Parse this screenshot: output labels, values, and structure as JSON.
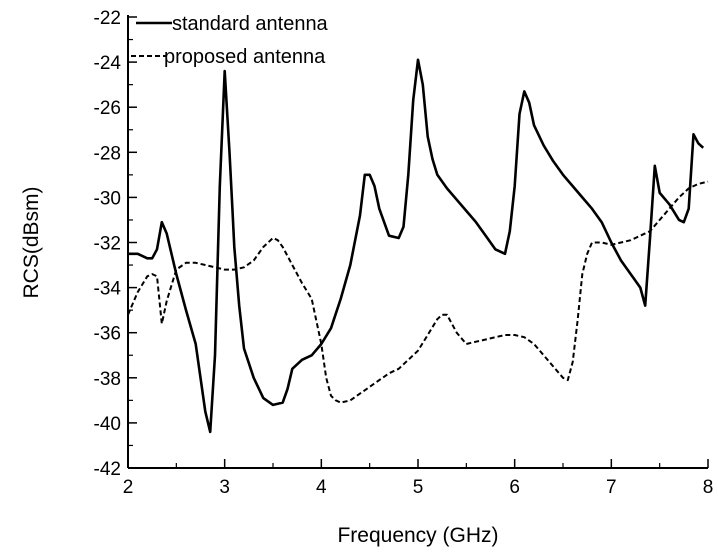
{
  "chart_data": {
    "type": "line",
    "title": "",
    "xlabel": "Frequency  (GHz)",
    "ylabel": "RCS(dBsm)",
    "xlim": [
      2,
      8
    ],
    "ylim": [
      -42,
      -22
    ],
    "x_ticks": [
      2,
      3,
      4,
      5,
      6,
      7,
      8
    ],
    "y_ticks": [
      -42,
      -40,
      -38,
      -36,
      -34,
      -32,
      -30,
      -28,
      -26,
      -24,
      -22
    ],
    "x_tick_labels": [
      "2",
      "3",
      "4",
      "5",
      "6",
      "7",
      "8"
    ],
    "y_tick_labels": [
      "-42",
      "-40",
      "-38",
      "-36",
      "-34",
      "-32",
      "-30",
      "-28",
      "-26",
      "-24",
      "-22"
    ],
    "grid": false,
    "legend_position": "top-left",
    "series": [
      {
        "name": "standard antenna",
        "style": "solid",
        "x": [
          2.0,
          2.1,
          2.2,
          2.25,
          2.3,
          2.35,
          2.4,
          2.5,
          2.6,
          2.7,
          2.8,
          2.85,
          2.9,
          2.95,
          3.0,
          3.05,
          3.08,
          3.1,
          3.15,
          3.2,
          3.3,
          3.4,
          3.5,
          3.6,
          3.65,
          3.7,
          3.8,
          3.9,
          4.0,
          4.1,
          4.2,
          4.3,
          4.4,
          4.45,
          4.5,
          4.55,
          4.6,
          4.7,
          4.8,
          4.85,
          4.9,
          4.95,
          5.0,
          5.05,
          5.1,
          5.15,
          5.2,
          5.3,
          5.4,
          5.5,
          5.6,
          5.7,
          5.8,
          5.9,
          5.95,
          6.0,
          6.05,
          6.1,
          6.15,
          6.2,
          6.3,
          6.4,
          6.5,
          6.6,
          6.7,
          6.8,
          6.9,
          7.0,
          7.1,
          7.2,
          7.3,
          7.35,
          7.4,
          7.45,
          7.5,
          7.6,
          7.7,
          7.75,
          7.8,
          7.85,
          7.9,
          7.95
        ],
        "y": [
          -32.5,
          -32.5,
          -32.7,
          -32.7,
          -32.3,
          -31.1,
          -31.6,
          -33.4,
          -35.0,
          -36.5,
          -39.5,
          -40.4,
          -37.0,
          -29.5,
          -24.4,
          -28.0,
          -30.5,
          -32.2,
          -34.8,
          -36.7,
          -38.0,
          -38.9,
          -39.2,
          -39.1,
          -38.5,
          -37.6,
          -37.2,
          -37.0,
          -36.5,
          -35.8,
          -34.5,
          -33.0,
          -30.8,
          -29.0,
          -29.0,
          -29.5,
          -30.5,
          -31.7,
          -31.8,
          -31.3,
          -29.0,
          -25.7,
          -23.9,
          -25.0,
          -27.3,
          -28.3,
          -29.0,
          -29.6,
          -30.1,
          -30.6,
          -31.1,
          -31.7,
          -32.3,
          -32.5,
          -31.5,
          -29.5,
          -26.3,
          -25.3,
          -25.8,
          -26.8,
          -27.7,
          -28.4,
          -29.0,
          -29.5,
          -30.0,
          -30.5,
          -31.1,
          -32.0,
          -32.8,
          -33.4,
          -34.0,
          -34.8,
          -31.8,
          -28.6,
          -29.8,
          -30.3,
          -31.0,
          -31.1,
          -30.5,
          -27.2,
          -27.6,
          -27.8
        ]
      },
      {
        "name": "proposed antenna",
        "style": "dashed",
        "x": [
          2.0,
          2.1,
          2.2,
          2.25,
          2.3,
          2.35,
          2.4,
          2.5,
          2.6,
          2.7,
          2.8,
          2.9,
          3.0,
          3.1,
          3.2,
          3.3,
          3.4,
          3.5,
          3.55,
          3.6,
          3.7,
          3.8,
          3.9,
          4.0,
          4.05,
          4.1,
          4.15,
          4.2,
          4.3,
          4.4,
          4.5,
          4.6,
          4.7,
          4.8,
          4.9,
          5.0,
          5.1,
          5.2,
          5.25,
          5.3,
          5.4,
          5.5,
          5.6,
          5.7,
          5.8,
          5.9,
          6.0,
          6.1,
          6.2,
          6.3,
          6.4,
          6.5,
          6.55,
          6.6,
          6.65,
          6.7,
          6.75,
          6.8,
          6.9,
          7.0,
          7.1,
          7.2,
          7.3,
          7.4,
          7.5,
          7.6,
          7.7,
          7.8,
          7.9,
          8.0
        ],
        "y": [
          -35.2,
          -34.2,
          -33.5,
          -33.4,
          -33.5,
          -35.6,
          -34.6,
          -33.2,
          -32.9,
          -32.9,
          -33.0,
          -33.1,
          -33.2,
          -33.2,
          -33.1,
          -32.8,
          -32.2,
          -31.8,
          -31.9,
          -32.2,
          -33.0,
          -33.8,
          -34.5,
          -36.5,
          -38.0,
          -38.8,
          -39.0,
          -39.1,
          -39.0,
          -38.7,
          -38.4,
          -38.1,
          -37.8,
          -37.6,
          -37.2,
          -36.8,
          -36.1,
          -35.4,
          -35.2,
          -35.2,
          -36.0,
          -36.5,
          -36.4,
          -36.3,
          -36.2,
          -36.1,
          -36.1,
          -36.2,
          -36.5,
          -37.0,
          -37.5,
          -38.0,
          -38.1,
          -37.3,
          -35.5,
          -33.4,
          -32.5,
          -32.0,
          -32.0,
          -32.1,
          -32.0,
          -31.9,
          -31.7,
          -31.5,
          -31.0,
          -30.5,
          -30.0,
          -29.6,
          -29.4,
          -29.3
        ]
      }
    ]
  }
}
